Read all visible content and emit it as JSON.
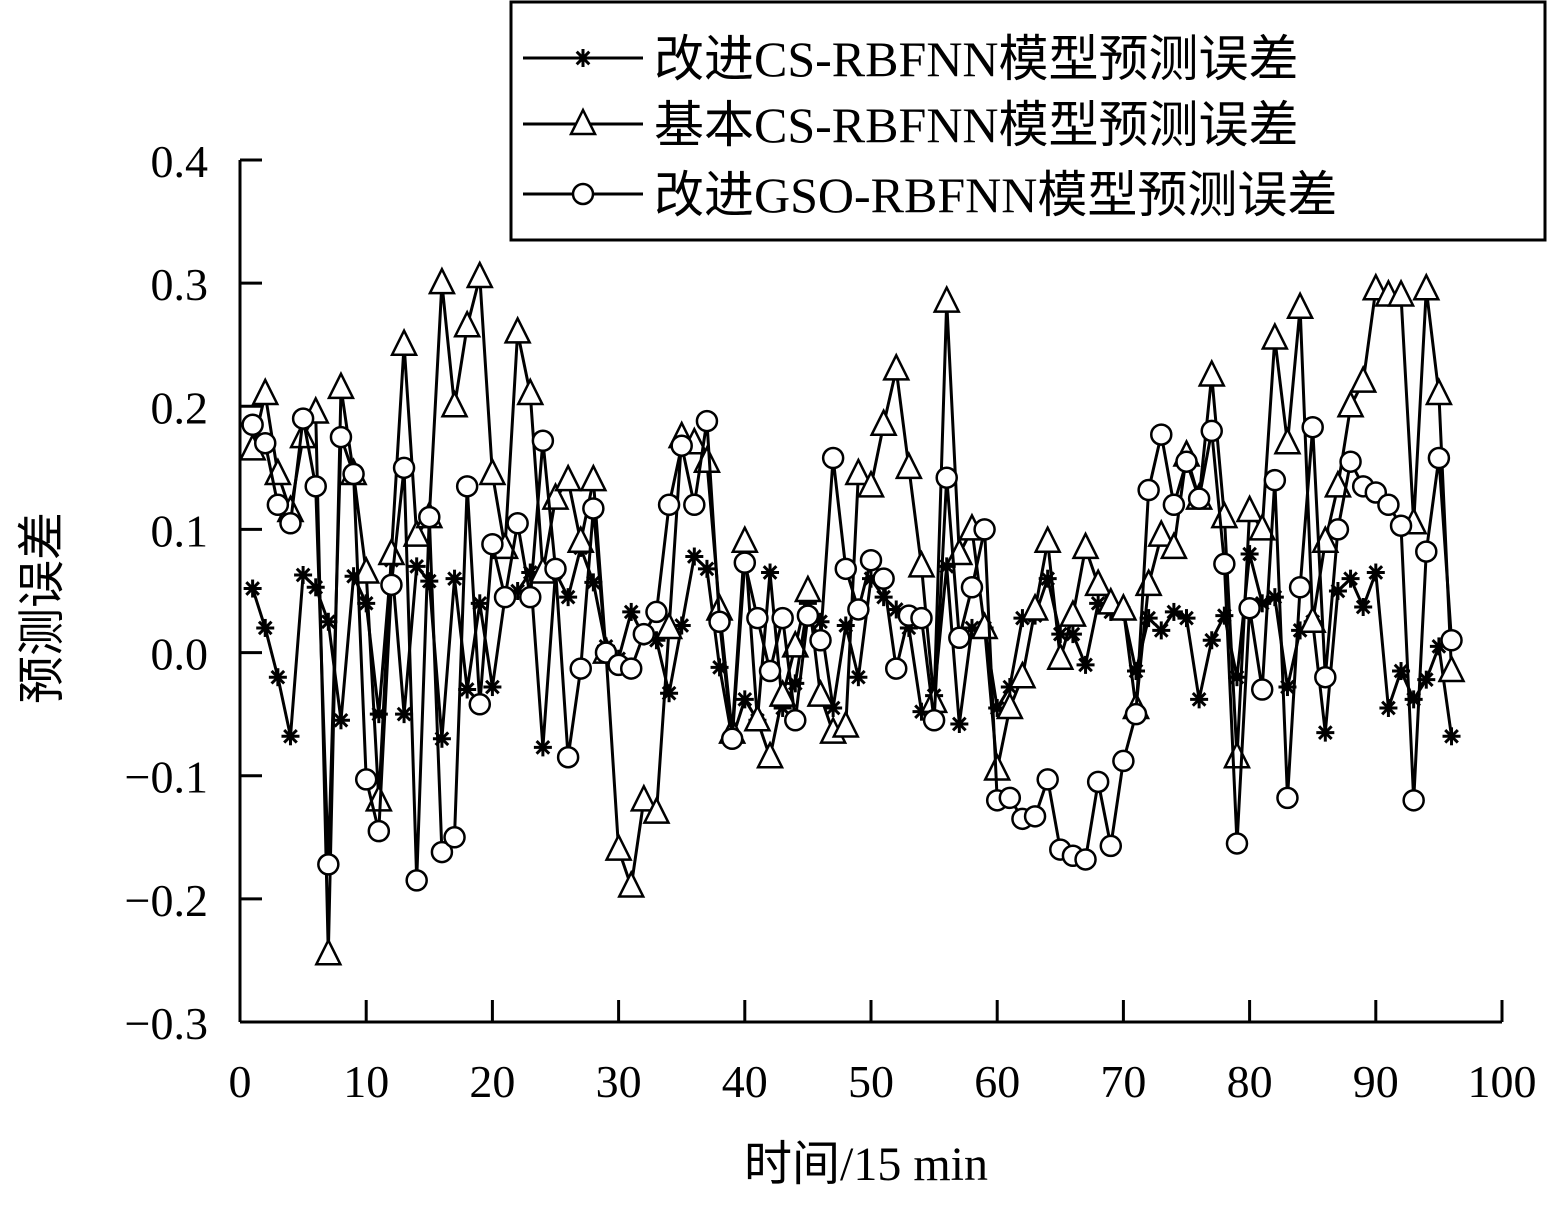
{
  "chart_data": {
    "type": "line",
    "title": "",
    "xlabel": "时间/15 min",
    "ylabel": "预测误差",
    "xlim": [
      0,
      100
    ],
    "ylim": [
      -0.3,
      0.4
    ],
    "x_ticks": [
      0,
      10,
      20,
      30,
      40,
      50,
      60,
      70,
      80,
      90,
      100
    ],
    "x_tick_labels": [
      "0",
      "10",
      "20",
      "30",
      "40",
      "50",
      "60",
      "70",
      "80",
      "90",
      "100"
    ],
    "y_ticks": [
      -0.3,
      -0.2,
      -0.1,
      0.0,
      0.1,
      0.2,
      0.3,
      0.4
    ],
    "y_tick_labels": [
      "−0.3",
      "−0.2",
      "−0.1",
      "0.0",
      "0.1",
      "0.2",
      "0.3",
      "0.4"
    ],
    "grid": false,
    "legend_position": "top-right",
    "colors": {
      "line": "#000000",
      "background": "#ffffff"
    },
    "x": [
      1,
      2,
      3,
      4,
      5,
      6,
      7,
      8,
      9,
      10,
      11,
      12,
      13,
      14,
      15,
      16,
      17,
      18,
      19,
      20,
      21,
      22,
      23,
      24,
      25,
      26,
      27,
      28,
      29,
      30,
      31,
      32,
      33,
      34,
      35,
      36,
      37,
      38,
      39,
      40,
      41,
      42,
      43,
      44,
      45,
      46,
      47,
      48,
      49,
      50,
      51,
      52,
      53,
      54,
      55,
      56,
      57,
      58,
      59,
      60,
      61,
      62,
      63,
      64,
      65,
      66,
      67,
      68,
      69,
      70,
      71,
      72,
      73,
      74,
      75,
      76,
      77,
      78,
      79,
      80,
      81,
      82,
      83,
      84,
      85,
      86,
      87,
      88,
      89,
      90,
      91,
      92,
      93,
      94,
      95,
      96
    ],
    "series": [
      {
        "name": "改进CS-RBFNN模型预测误差",
        "marker": "star",
        "values": [
          0.052,
          0.02,
          -0.02,
          -0.068,
          0.063,
          0.053,
          0.025,
          -0.055,
          0.062,
          0.04,
          -0.05,
          0.075,
          -0.05,
          0.07,
          0.058,
          -0.07,
          0.06,
          -0.03,
          0.04,
          -0.028,
          0.045,
          0.05,
          0.065,
          -0.077,
          0.065,
          0.045,
          0.085,
          0.057,
          0.005,
          -0.005,
          0.033,
          0.013,
          0.01,
          -0.033,
          0.022,
          0.078,
          0.068,
          -0.012,
          -0.07,
          -0.038,
          -0.055,
          0.065,
          -0.045,
          -0.025,
          0.04,
          0.025,
          -0.045,
          0.022,
          -0.02,
          0.06,
          0.045,
          0.035,
          0.02,
          -0.048,
          -0.035,
          0.07,
          -0.058,
          0.02,
          0.02,
          -0.045,
          -0.028,
          0.028,
          0.03,
          0.06,
          0.015,
          0.015,
          -0.01,
          0.04,
          0.033,
          0.033,
          -0.015,
          0.028,
          0.018,
          0.033,
          0.028,
          -0.038,
          0.01,
          0.03,
          -0.02,
          0.08,
          0.04,
          0.045,
          -0.028,
          0.018,
          0.025,
          -0.065,
          0.05,
          0.06,
          0.037,
          0.065,
          -0.045,
          -0.015,
          -0.038,
          -0.022,
          0.005,
          -0.068
        ]
      },
      {
        "name": "基本CS-RBFNN模型预测误差",
        "marker": "triangle",
        "values": [
          0.165,
          0.21,
          0.145,
          0.115,
          0.175,
          0.195,
          -0.245,
          0.215,
          0.145,
          0.065,
          -0.12,
          0.08,
          0.25,
          0.095,
          0.11,
          0.3,
          0.2,
          0.265,
          0.305,
          0.145,
          0.085,
          0.26,
          0.21,
          0.065,
          0.125,
          0.14,
          0.09,
          0.14,
          0.0,
          -0.16,
          -0.19,
          -0.12,
          -0.13,
          0.02,
          0.175,
          0.17,
          0.155,
          0.035,
          -0.065,
          0.09,
          -0.055,
          -0.085,
          -0.035,
          0.005,
          0.05,
          -0.035,
          -0.065,
          -0.06,
          0.145,
          0.135,
          0.185,
          0.23,
          0.15,
          0.07,
          -0.04,
          0.285,
          0.08,
          0.1,
          0.02,
          -0.095,
          -0.045,
          -0.02,
          0.035,
          0.09,
          -0.005,
          0.03,
          0.085,
          0.055,
          0.04,
          0.035,
          -0.045,
          0.055,
          0.095,
          0.085,
          0.16,
          0.125,
          0.225,
          0.11,
          -0.085,
          0.115,
          0.1,
          0.255,
          0.17,
          0.28,
          0.025,
          0.09,
          0.135,
          0.2,
          0.22,
          0.295,
          0.29,
          0.29,
          0.105,
          0.295,
          0.21,
          -0.015
        ]
      },
      {
        "name": "改进GSO-RBFNN模型预测误差",
        "marker": "circle",
        "values": [
          0.185,
          0.17,
          0.12,
          0.105,
          0.19,
          0.135,
          -0.172,
          0.175,
          0.145,
          -0.103,
          -0.145,
          0.055,
          0.15,
          -0.185,
          0.11,
          -0.162,
          -0.15,
          0.135,
          -0.042,
          0.088,
          0.045,
          0.105,
          0.045,
          0.172,
          0.068,
          -0.085,
          -0.013,
          0.117,
          0.0,
          -0.01,
          -0.013,
          0.015,
          0.033,
          0.12,
          0.168,
          0.12,
          0.188,
          0.025,
          -0.07,
          0.073,
          0.028,
          -0.015,
          0.028,
          -0.055,
          0.03,
          0.01,
          0.158,
          0.068,
          0.035,
          0.075,
          0.06,
          -0.013,
          0.03,
          0.028,
          -0.055,
          0.142,
          0.012,
          0.053,
          0.1,
          -0.12,
          -0.118,
          -0.135,
          -0.133,
          -0.103,
          -0.16,
          -0.165,
          -0.168,
          -0.105,
          -0.157,
          -0.088,
          -0.05,
          0.132,
          0.177,
          0.12,
          0.155,
          0.125,
          0.18,
          0.072,
          -0.155,
          0.036,
          -0.03,
          0.14,
          -0.118,
          0.053,
          0.183,
          -0.02,
          0.1,
          0.155,
          0.135,
          0.13,
          0.12,
          0.103,
          -0.12,
          0.082,
          0.158,
          0.01
        ]
      }
    ]
  }
}
